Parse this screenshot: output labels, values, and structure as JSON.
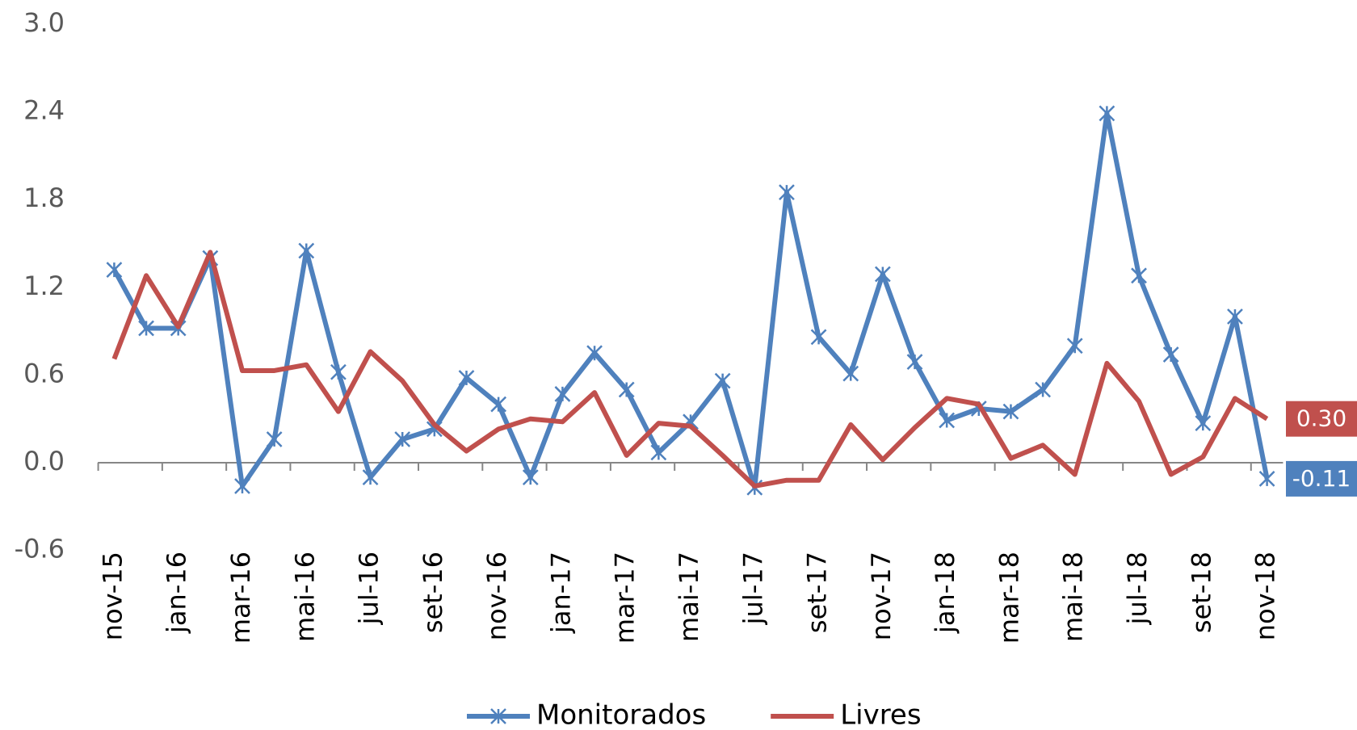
{
  "chart_data": {
    "type": "line",
    "categories": [
      "nov-15",
      null,
      "jan-16",
      null,
      "mar-16",
      null,
      "mai-16",
      null,
      "jul-16",
      null,
      "set-16",
      null,
      "nov-16",
      null,
      "jan-17",
      null,
      "mar-17",
      null,
      "mai-17",
      null,
      "jul-17",
      null,
      "set-17",
      null,
      "nov-17",
      null,
      "jan-18",
      null,
      "mar-18",
      null,
      "mai-18",
      null,
      "jul-18",
      null,
      "set-18",
      null,
      "nov-18"
    ],
    "series": [
      {
        "name": "Monitorados",
        "color": "#4f81bd",
        "marker": "x",
        "values": [
          1.32,
          0.92,
          0.92,
          1.4,
          -0.16,
          0.16,
          1.45,
          0.62,
          -0.1,
          0.16,
          0.23,
          0.58,
          0.4,
          -0.1,
          0.47,
          0.75,
          0.5,
          0.07,
          0.28,
          0.56,
          -0.17,
          1.85,
          0.86,
          0.61,
          1.29,
          0.69,
          0.29,
          0.37,
          0.35,
          0.5,
          0.8,
          2.39,
          1.28,
          0.74,
          0.27,
          1.0,
          -0.11
        ],
        "value_labels": [
          null,
          null,
          null,
          null,
          null,
          null,
          null,
          null,
          null,
          null,
          null,
          null,
          null,
          null,
          null,
          null,
          null,
          null,
          null,
          null,
          null,
          null,
          null,
          null,
          null,
          null,
          null,
          null,
          null,
          null,
          null,
          null,
          null,
          null,
          null,
          null,
          "-0.11"
        ]
      },
      {
        "name": "Livres",
        "color": "#c0504d",
        "values": [
          0.71,
          1.28,
          0.93,
          1.44,
          0.63,
          0.63,
          0.67,
          0.35,
          0.76,
          0.56,
          0.26,
          0.08,
          0.23,
          0.3,
          0.28,
          0.48,
          0.05,
          0.27,
          0.25,
          0.05,
          -0.16,
          -0.12,
          -0.12,
          0.26,
          0.02,
          0.24,
          0.44,
          0.4,
          0.03,
          0.12,
          -0.08,
          0.68,
          0.42,
          -0.08,
          0.04,
          0.44,
          0.3
        ],
        "value_labels": [
          null,
          null,
          null,
          null,
          null,
          null,
          null,
          null,
          null,
          null,
          null,
          null,
          null,
          null,
          null,
          null,
          null,
          null,
          null,
          null,
          null,
          null,
          null,
          null,
          null,
          null,
          null,
          null,
          null,
          null,
          null,
          null,
          null,
          null,
          null,
          null,
          "0.30"
        ]
      }
    ],
    "ylim": [
      -0.6,
      3.0
    ],
    "yticks": [
      {
        "value": -0.6,
        "label": "-0.6"
      },
      {
        "value": 0,
        "label": "0.0"
      },
      {
        "value": 0.6,
        "label": "0.6"
      },
      {
        "value": 1.2,
        "label": "1.2"
      },
      {
        "value": 1.8,
        "label": "1.8"
      },
      {
        "value": 2.4,
        "label": "2.4"
      },
      {
        "value": 3.0,
        "label": "3.0"
      }
    ],
    "legend": "bottom"
  }
}
